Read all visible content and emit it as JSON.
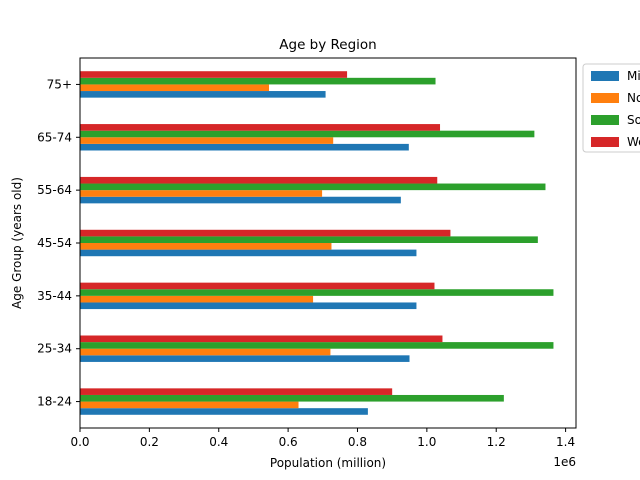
{
  "chart_data": {
    "type": "bar",
    "orientation": "horizontal",
    "title": "Age by Region",
    "xlabel": "Population (million)",
    "ylabel": "Age Group (years old)",
    "x_offset_label": "1e6",
    "xlim": [
      0,
      1430000
    ],
    "x_ticks": [
      0,
      200000,
      400000,
      600000,
      800000,
      1000000,
      1200000,
      1400000
    ],
    "x_tick_labels": [
      "0.0",
      "0.2",
      "0.4",
      "0.6",
      "0.8",
      "1.0",
      "1.2",
      "1.4"
    ],
    "categories": [
      "18-24",
      "25-34",
      "35-44",
      "45-54",
      "55-64",
      "65-74",
      "75+"
    ],
    "series": [
      {
        "name": "Midwest",
        "color": "#1f77b4",
        "values": [
          830000,
          950000,
          970000,
          970000,
          925000,
          948000,
          708000
        ]
      },
      {
        "name": "Northeast",
        "color": "#ff7f0e",
        "values": [
          630000,
          722000,
          672000,
          725000,
          698000,
          730000,
          545000
        ]
      },
      {
        "name": "South",
        "color": "#2ca02c",
        "values": [
          1222000,
          1365000,
          1365000,
          1320000,
          1342000,
          1310000,
          1025000
        ]
      },
      {
        "name": "West",
        "color": "#d62728",
        "values": [
          900000,
          1045000,
          1022000,
          1068000,
          1030000,
          1038000,
          770000
        ]
      }
    ],
    "grid": false,
    "legend": "outside-top-right"
  }
}
